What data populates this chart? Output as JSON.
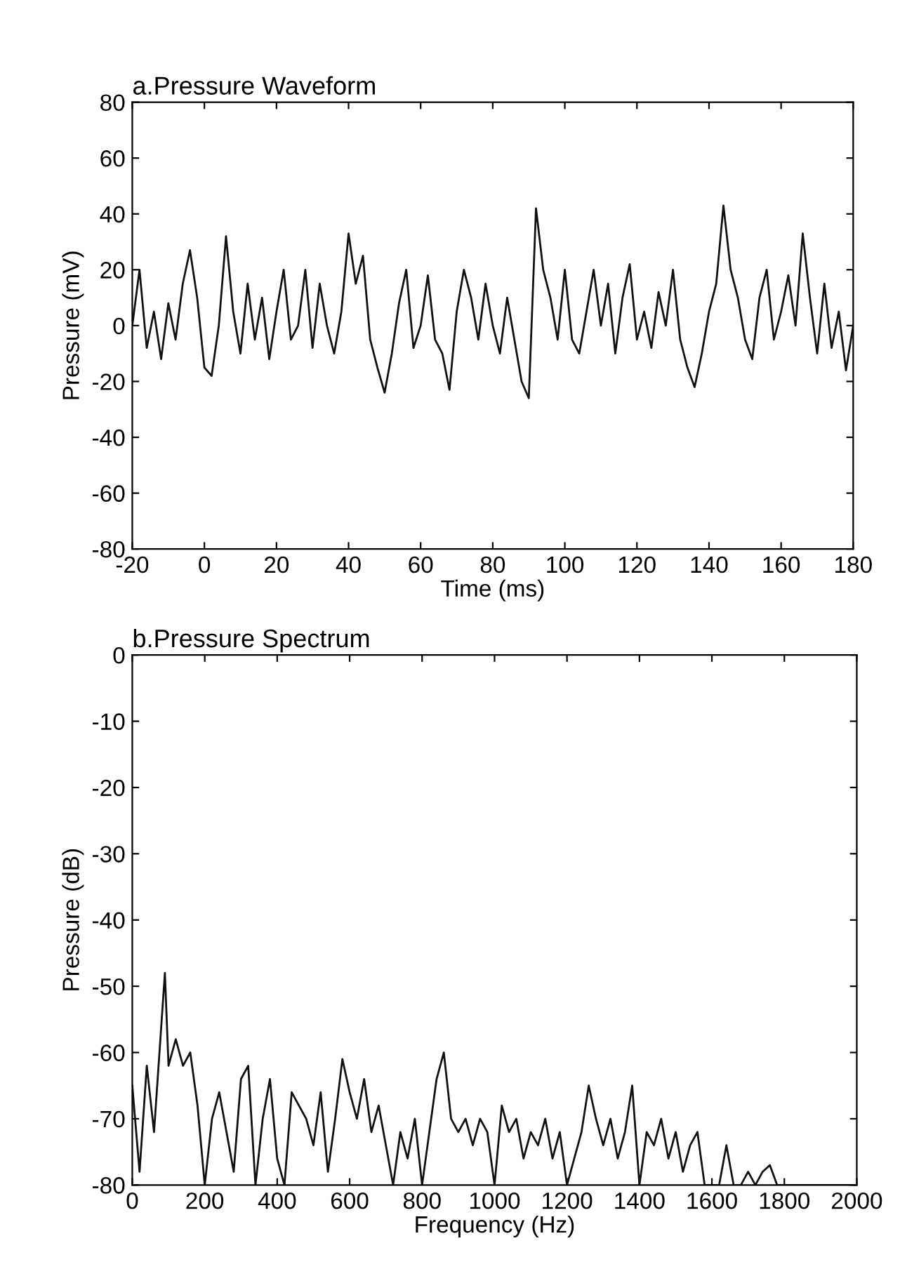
{
  "chart_data": [
    {
      "type": "line",
      "title": "a.Pressure Waveform",
      "xlabel": "Time (ms)",
      "ylabel": "Pressure (mV)",
      "xlim": [
        -20,
        180
      ],
      "xticks": [
        -20,
        0,
        20,
        40,
        60,
        80,
        100,
        120,
        140,
        160,
        180
      ],
      "ylim": [
        -80,
        80
      ],
      "yticks": [
        -80,
        -60,
        -40,
        -20,
        0,
        20,
        40,
        60,
        80
      ],
      "x": [
        -20,
        -18,
        -16,
        -14,
        -12,
        -10,
        -8,
        -6,
        -4,
        -2,
        0,
        2,
        4,
        6,
        8,
        10,
        12,
        14,
        16,
        18,
        20,
        22,
        24,
        26,
        28,
        30,
        32,
        34,
        36,
        38,
        40,
        42,
        44,
        46,
        48,
        50,
        52,
        54,
        56,
        58,
        60,
        62,
        64,
        66,
        68,
        70,
        72,
        74,
        76,
        78,
        80,
        82,
        84,
        86,
        88,
        90,
        92,
        94,
        96,
        98,
        100,
        102,
        104,
        106,
        108,
        110,
        112,
        114,
        116,
        118,
        120,
        122,
        124,
        126,
        128,
        130,
        132,
        134,
        136,
        138,
        140,
        142,
        144,
        146,
        148,
        150,
        152,
        154,
        156,
        158,
        160,
        162,
        164,
        166,
        168,
        170,
        172,
        174,
        176,
        178,
        180
      ],
      "series": [
        {
          "color": "#111111",
          "values": [
            0,
            20,
            -8,
            5,
            -12,
            8,
            -5,
            15,
            27,
            10,
            -15,
            -18,
            0,
            32,
            5,
            -10,
            15,
            -5,
            10,
            -12,
            5,
            20,
            -5,
            0,
            20,
            -8,
            15,
            0,
            -10,
            5,
            33,
            15,
            25,
            -5,
            -15,
            -24,
            -10,
            8,
            20,
            -8,
            0,
            18,
            -5,
            -10,
            -23,
            5,
            20,
            10,
            -5,
            15,
            0,
            -10,
            10,
            -5,
            -20,
            -26,
            42,
            20,
            10,
            -5,
            20,
            -5,
            -10,
            5,
            20,
            0,
            15,
            -10,
            10,
            22,
            -5,
            5,
            -8,
            12,
            0,
            20,
            -5,
            -15,
            -22,
            -10,
            5,
            15,
            43,
            20,
            10,
            -5,
            -12,
            10,
            20,
            -5,
            5,
            18,
            0,
            33,
            10,
            -10,
            15,
            -8,
            5,
            -16,
            0
          ]
        }
      ]
    },
    {
      "type": "line",
      "title": "b.Pressure Spectrum",
      "xlabel": "Frequency (Hz)",
      "ylabel": "Pressure (dB)",
      "xlim": [
        0,
        2000
      ],
      "xticks": [
        0,
        200,
        400,
        600,
        800,
        1000,
        1200,
        1400,
        1600,
        1800,
        2000
      ],
      "ylim": [
        -80,
        0
      ],
      "yticks": [
        -80,
        -70,
        -60,
        -50,
        -40,
        -30,
        -20,
        -10,
        0
      ],
      "x": [
        0,
        20,
        40,
        60,
        80,
        90,
        100,
        120,
        140,
        160,
        180,
        200,
        220,
        240,
        260,
        280,
        300,
        320,
        340,
        360,
        380,
        400,
        420,
        440,
        460,
        480,
        500,
        520,
        540,
        560,
        580,
        600,
        620,
        640,
        660,
        680,
        700,
        720,
        740,
        760,
        780,
        800,
        820,
        840,
        860,
        880,
        900,
        920,
        940,
        960,
        980,
        1000,
        1020,
        1040,
        1060,
        1080,
        1100,
        1120,
        1140,
        1160,
        1180,
        1200,
        1220,
        1240,
        1260,
        1280,
        1300,
        1320,
        1340,
        1360,
        1380,
        1400,
        1420,
        1440,
        1460,
        1480,
        1500,
        1520,
        1540,
        1560,
        1580,
        1600,
        1620,
        1640,
        1660,
        1680,
        1700,
        1720,
        1740,
        1760,
        1780,
        1800,
        1850,
        1900,
        1950,
        2000
      ],
      "series": [
        {
          "color": "#111111",
          "values": [
            -65,
            -78,
            -62,
            -72,
            -56,
            -48,
            -62,
            -58,
            -62,
            -60,
            -68,
            -80,
            -70,
            -66,
            -72,
            -78,
            -64,
            -62,
            -80,
            -70,
            -64,
            -76,
            -80,
            -66,
            -68,
            -70,
            -74,
            -66,
            -78,
            -70,
            -61,
            -66,
            -70,
            -64,
            -72,
            -68,
            -74,
            -80,
            -72,
            -76,
            -70,
            -80,
            -72,
            -64,
            -60,
            -70,
            -72,
            -70,
            -74,
            -70,
            -72,
            -80,
            -68,
            -72,
            -70,
            -76,
            -72,
            -74,
            -70,
            -76,
            -72,
            -80,
            -76,
            -72,
            -65,
            -70,
            -74,
            -70,
            -76,
            -72,
            -65,
            -80,
            -72,
            -74,
            -70,
            -76,
            -72,
            -78,
            -74,
            -72,
            -80,
            -80,
            -80,
            -74,
            -80,
            -80,
            -78,
            -80,
            -78,
            -77,
            -80,
            -80,
            -80,
            -80,
            -80,
            -80
          ]
        }
      ]
    }
  ]
}
